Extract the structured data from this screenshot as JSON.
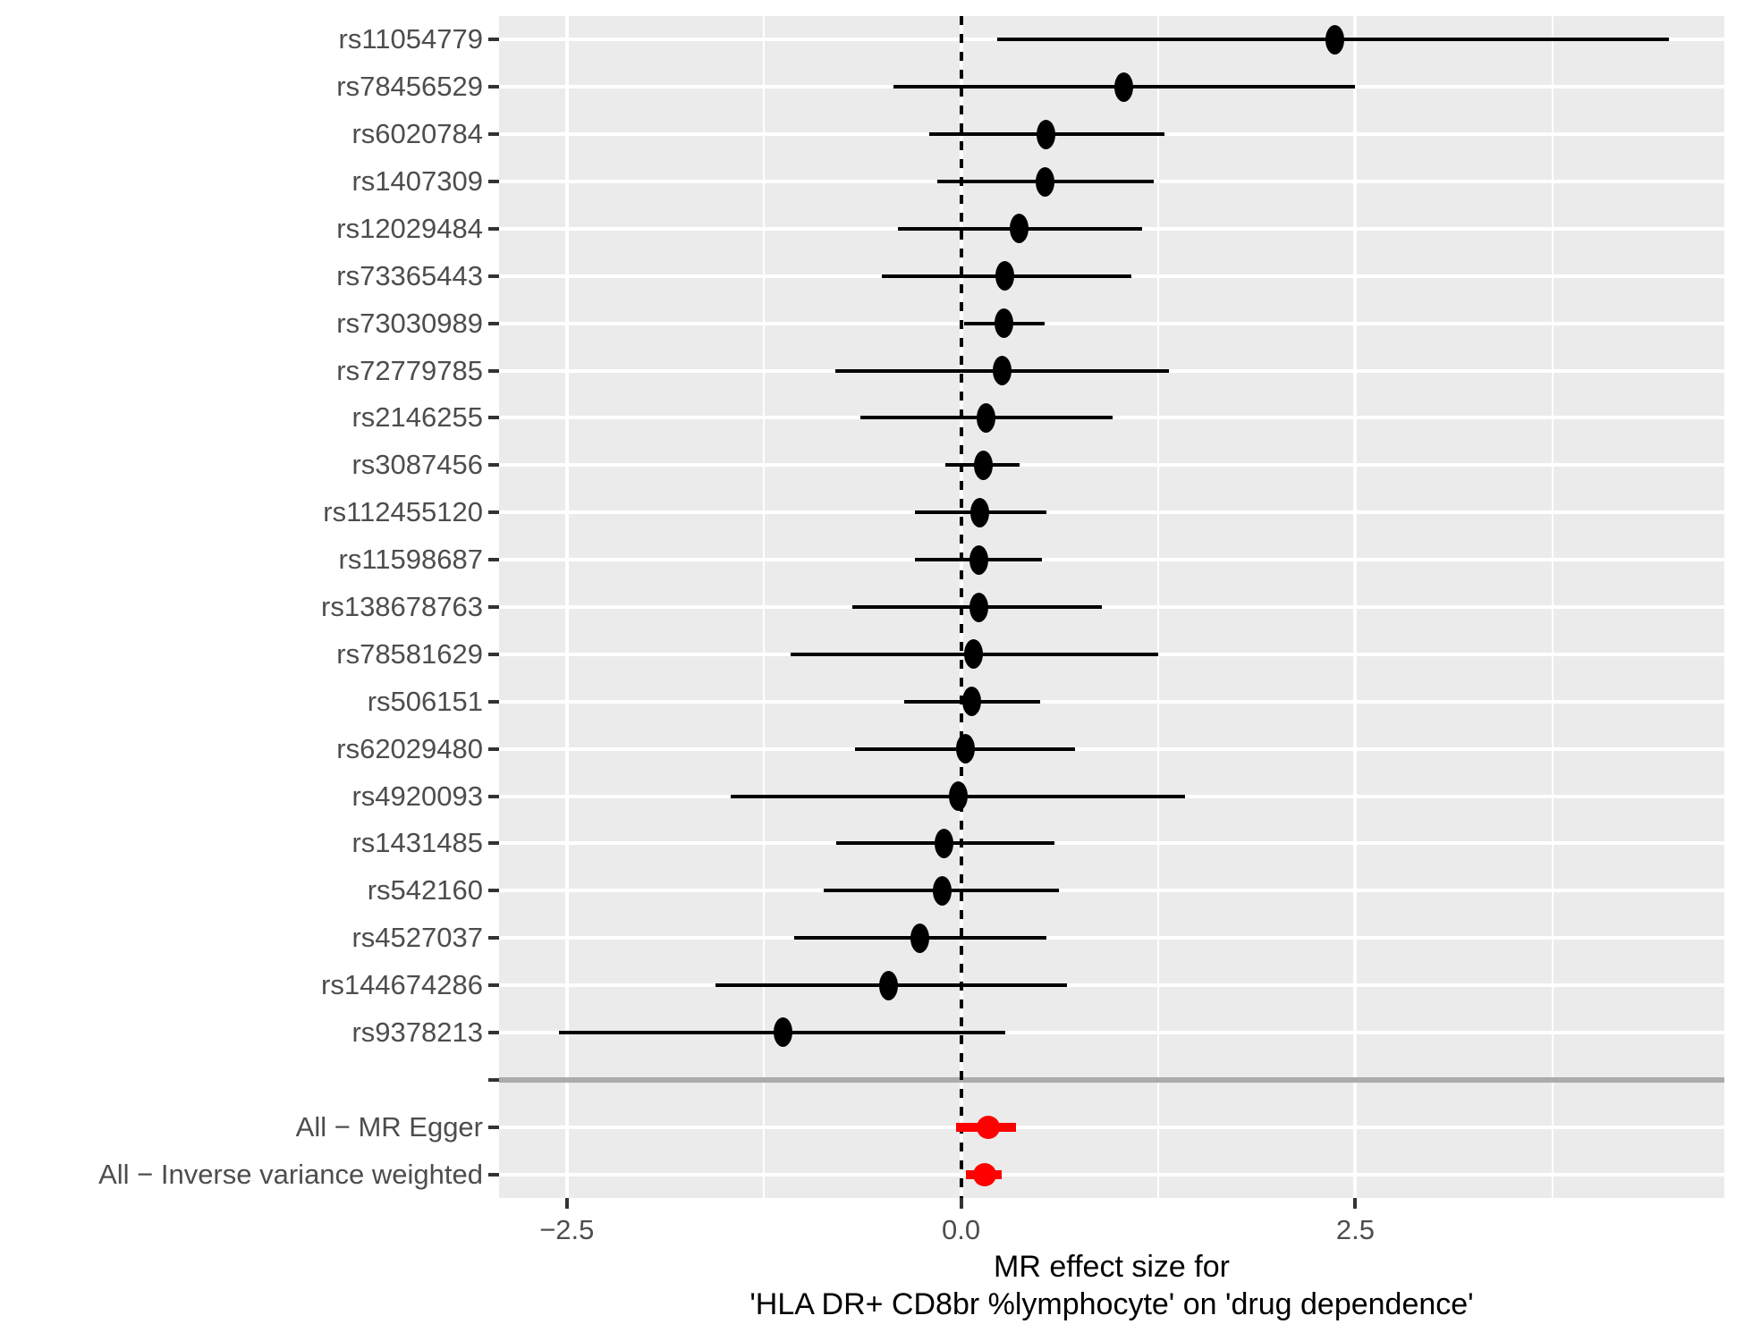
{
  "colors": {
    "panel_bg": "#EBEBEB",
    "grid": "#FFFFFF",
    "snp": "#000000",
    "summary": "#FF0000",
    "separator": "#ABABAB",
    "axis_text": "#4D4D4D",
    "tick": "#333333",
    "title": "#000000",
    "reference_line": "#000000"
  },
  "chart_data": {
    "type": "scatter",
    "subtype": "forest-plot",
    "xlabel_lines": [
      "MR effect size for",
      "'HLA DR+ CD8br %lymphocyte' on 'drug dependence'"
    ],
    "x_axis": {
      "range": [
        -2.93,
        4.84
      ],
      "ticks": [
        -2.5,
        0.0,
        2.5
      ],
      "tick_labels": [
        "−2.5",
        "0.0",
        "2.5"
      ],
      "major_gridlines": [
        -2.5,
        0.0,
        2.5
      ],
      "minor_gridlines": [
        -1.25,
        1.25,
        3.75
      ],
      "reference_line": 0.0,
      "grid": "on"
    },
    "legend": "none",
    "rows": [
      {
        "group": "snp",
        "label": "rs11054779",
        "b": 2.37,
        "lo": 0.23,
        "hi": 4.49
      },
      {
        "group": "snp",
        "label": "rs78456529",
        "b": 1.03,
        "lo": -0.43,
        "hi": 2.5
      },
      {
        "group": "snp",
        "label": "rs6020784",
        "b": 0.54,
        "lo": -0.2,
        "hi": 1.29
      },
      {
        "group": "snp",
        "label": "rs1407309",
        "b": 0.53,
        "lo": -0.15,
        "hi": 1.22
      },
      {
        "group": "snp",
        "label": "rs12029484",
        "b": 0.37,
        "lo": -0.4,
        "hi": 1.15
      },
      {
        "group": "snp",
        "label": "rs73365443",
        "b": 0.28,
        "lo": -0.5,
        "hi": 1.08
      },
      {
        "group": "snp",
        "label": "rs73030989",
        "b": 0.27,
        "lo": 0.02,
        "hi": 0.53
      },
      {
        "group": "snp",
        "label": "rs72779785",
        "b": 0.26,
        "lo": -0.8,
        "hi": 1.32
      },
      {
        "group": "snp",
        "label": "rs2146255",
        "b": 0.16,
        "lo": -0.64,
        "hi": 0.96
      },
      {
        "group": "snp",
        "label": "rs3087456",
        "b": 0.14,
        "lo": -0.1,
        "hi": 0.37
      },
      {
        "group": "snp",
        "label": "rs112455120",
        "b": 0.12,
        "lo": -0.29,
        "hi": 0.54
      },
      {
        "group": "snp",
        "label": "rs11598687",
        "b": 0.11,
        "lo": -0.29,
        "hi": 0.51
      },
      {
        "group": "snp",
        "label": "rs138678763",
        "b": 0.11,
        "lo": -0.69,
        "hi": 0.89
      },
      {
        "group": "snp",
        "label": "rs78581629",
        "b": 0.08,
        "lo": -1.08,
        "hi": 1.25
      },
      {
        "group": "snp",
        "label": "rs506151",
        "b": 0.07,
        "lo": -0.36,
        "hi": 0.5
      },
      {
        "group": "snp",
        "label": "rs62029480",
        "b": 0.03,
        "lo": -0.67,
        "hi": 0.72
      },
      {
        "group": "snp",
        "label": "rs4920093",
        "b": -0.02,
        "lo": -1.46,
        "hi": 1.42
      },
      {
        "group": "snp",
        "label": "rs1431485",
        "b": -0.11,
        "lo": -0.79,
        "hi": 0.59
      },
      {
        "group": "snp",
        "label": "rs542160",
        "b": -0.12,
        "lo": -0.87,
        "hi": 0.62
      },
      {
        "group": "snp",
        "label": "rs4527037",
        "b": -0.26,
        "lo": -1.06,
        "hi": 0.54
      },
      {
        "group": "snp",
        "label": "rs144674286",
        "b": -0.46,
        "lo": -1.56,
        "hi": 0.67
      },
      {
        "group": "snp",
        "label": "rs9378213",
        "b": -1.13,
        "lo": -2.55,
        "hi": 0.28
      },
      {
        "group": "separator",
        "label": ""
      },
      {
        "group": "summary",
        "label": "All − MR Egger",
        "b": 0.17,
        "lo": -0.03,
        "hi": 0.35
      },
      {
        "group": "summary",
        "label": "All − Inverse variance weighted",
        "b": 0.15,
        "lo": 0.03,
        "hi": 0.26
      }
    ]
  }
}
